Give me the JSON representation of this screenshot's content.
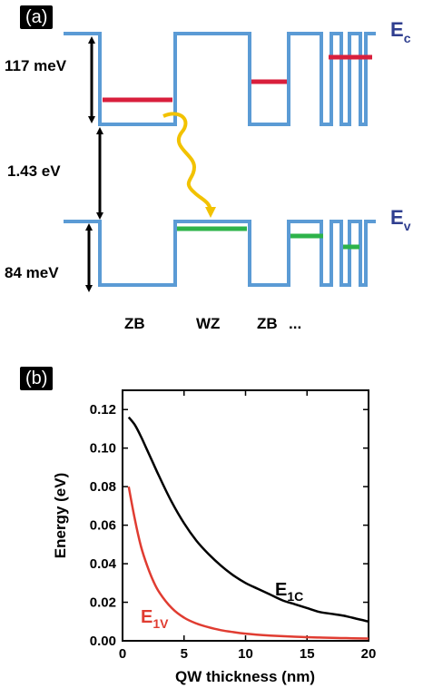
{
  "panel_a": {
    "tag": "(a)",
    "ec_main": "E",
    "ec_sub": "c",
    "ev_main": "E",
    "ev_sub": "v",
    "dim_117": "117 meV",
    "dim_143": "1.43 eV",
    "dim_84": "84 meV",
    "layer_labels": [
      "ZB",
      "WZ",
      "ZB",
      "..."
    ],
    "colors": {
      "band": "#5b9bd5",
      "electron_level": "#d91f3c",
      "hole_level": "#2db34a",
      "transition": "#f2c200",
      "arrow": "#000000",
      "band_label": "#2f3e8f"
    }
  },
  "panel_b": {
    "tag": "(b)",
    "chart_data": {
      "type": "line",
      "xlabel": "QW thickness (nm)",
      "ylabel": "Energy (eV)",
      "xlim": [
        0,
        20
      ],
      "ylim": [
        0,
        0.13
      ],
      "xticks": [
        0,
        5,
        10,
        15,
        20
      ],
      "yticks": [
        0.0,
        0.02,
        0.04,
        0.06,
        0.08,
        0.1,
        0.12
      ],
      "xtick_labels": [
        "0",
        "5",
        "10",
        "15",
        "20"
      ],
      "ytick_labels": [
        "0.00",
        "0.02",
        "0.04",
        "0.06",
        "0.08",
        "0.10",
        "0.12"
      ],
      "series": [
        {
          "name": "E1C",
          "label_main": "E",
          "label_sub": "1C",
          "color": "#000000",
          "x": [
            0.5,
            1,
            1.5,
            2,
            2.5,
            3,
            4,
            5,
            6,
            7,
            8,
            9,
            10,
            11,
            12,
            13,
            14,
            15,
            16,
            17,
            18,
            19,
            20
          ],
          "y": [
            0.116,
            0.112,
            0.106,
            0.099,
            0.092,
            0.085,
            0.072,
            0.061,
            0.052,
            0.045,
            0.039,
            0.034,
            0.03,
            0.027,
            0.024,
            0.021,
            0.019,
            0.017,
            0.015,
            0.014,
            0.013,
            0.0115,
            0.01
          ]
        },
        {
          "name": "E1V",
          "label_main": "E",
          "label_sub": "1V",
          "color": "#e03c31",
          "x": [
            0.5,
            1,
            1.5,
            2,
            2.5,
            3,
            4,
            5,
            6,
            7,
            8,
            9,
            10,
            12,
            14,
            16,
            18,
            20
          ],
          "y": [
            0.08,
            0.063,
            0.049,
            0.039,
            0.031,
            0.025,
            0.017,
            0.012,
            0.009,
            0.007,
            0.0055,
            0.0045,
            0.0037,
            0.0027,
            0.0021,
            0.0017,
            0.0014,
            0.0012
          ]
        }
      ]
    }
  }
}
